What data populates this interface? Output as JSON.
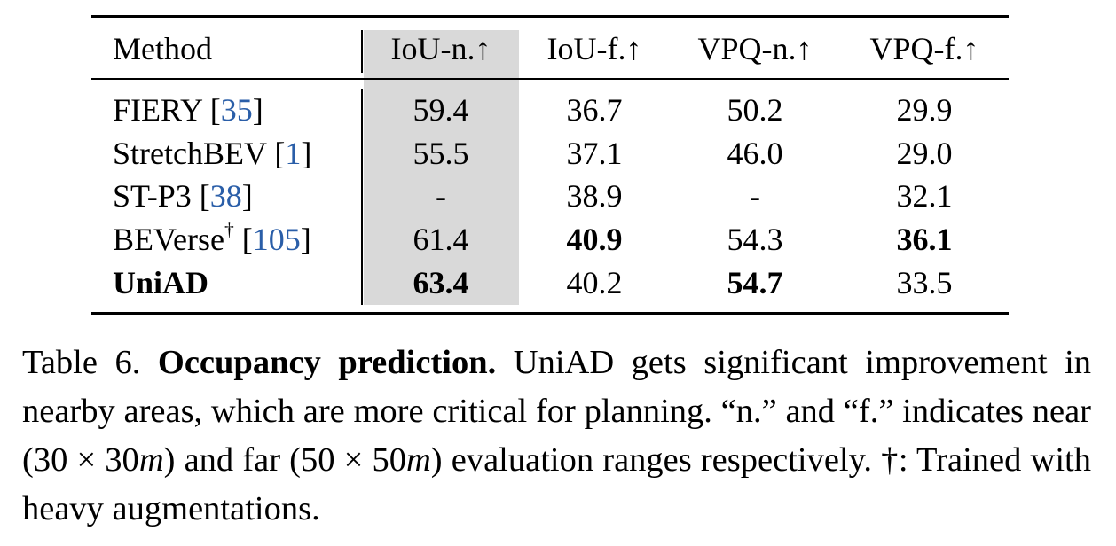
{
  "table": {
    "header": [
      "Method",
      "IoU-n.↑",
      "IoU-f.↑",
      "VPQ-n.↑",
      "VPQ-f.↑"
    ],
    "highlight_column": 1,
    "rows": [
      {
        "method": [
          {
            "text": "FIERY ["
          },
          {
            "text": "35",
            "link": true
          },
          {
            "text": "]"
          }
        ],
        "values": [
          "59.4",
          "36.7",
          "50.2",
          "29.9"
        ],
        "bold": []
      },
      {
        "method": [
          {
            "text": "StretchBEV ["
          },
          {
            "text": "1",
            "link": true
          },
          {
            "text": "]"
          }
        ],
        "values": [
          "55.5",
          "37.1",
          "46.0",
          "29.0"
        ],
        "bold": []
      },
      {
        "method": [
          {
            "text": "ST-P3 ["
          },
          {
            "text": "38",
            "link": true
          },
          {
            "text": "]"
          }
        ],
        "values": [
          "-",
          "38.9",
          "-",
          "32.1"
        ],
        "bold": []
      },
      {
        "method": [
          {
            "text": "BEVerse"
          },
          {
            "text": "†",
            "sup": true
          },
          {
            "text": " ["
          },
          {
            "text": "105",
            "link": true
          },
          {
            "text": "]"
          }
        ],
        "values": [
          "61.4",
          "40.9",
          "54.3",
          "36.1"
        ],
        "bold": [
          1,
          3
        ]
      },
      {
        "method": [
          {
            "text": "UniAD",
            "bold": true
          }
        ],
        "values": [
          "63.4",
          "40.2",
          "54.7",
          "33.5"
        ],
        "bold": [
          0,
          2
        ]
      }
    ]
  },
  "caption": [
    {
      "text": "Table 6. "
    },
    {
      "text": "Occupancy prediction.",
      "bold": true
    },
    {
      "text": " UniAD gets significant improvement in nearby areas, which are more critical for planning. “n.” and “f.” indicates near (30 × 30"
    },
    {
      "text": "m",
      "italic": true
    },
    {
      "text": ") and far (50 × 50"
    },
    {
      "text": "m",
      "italic": true
    },
    {
      "text": ") evaluation ranges respectively. †: Trained with heavy augmentations."
    }
  ]
}
